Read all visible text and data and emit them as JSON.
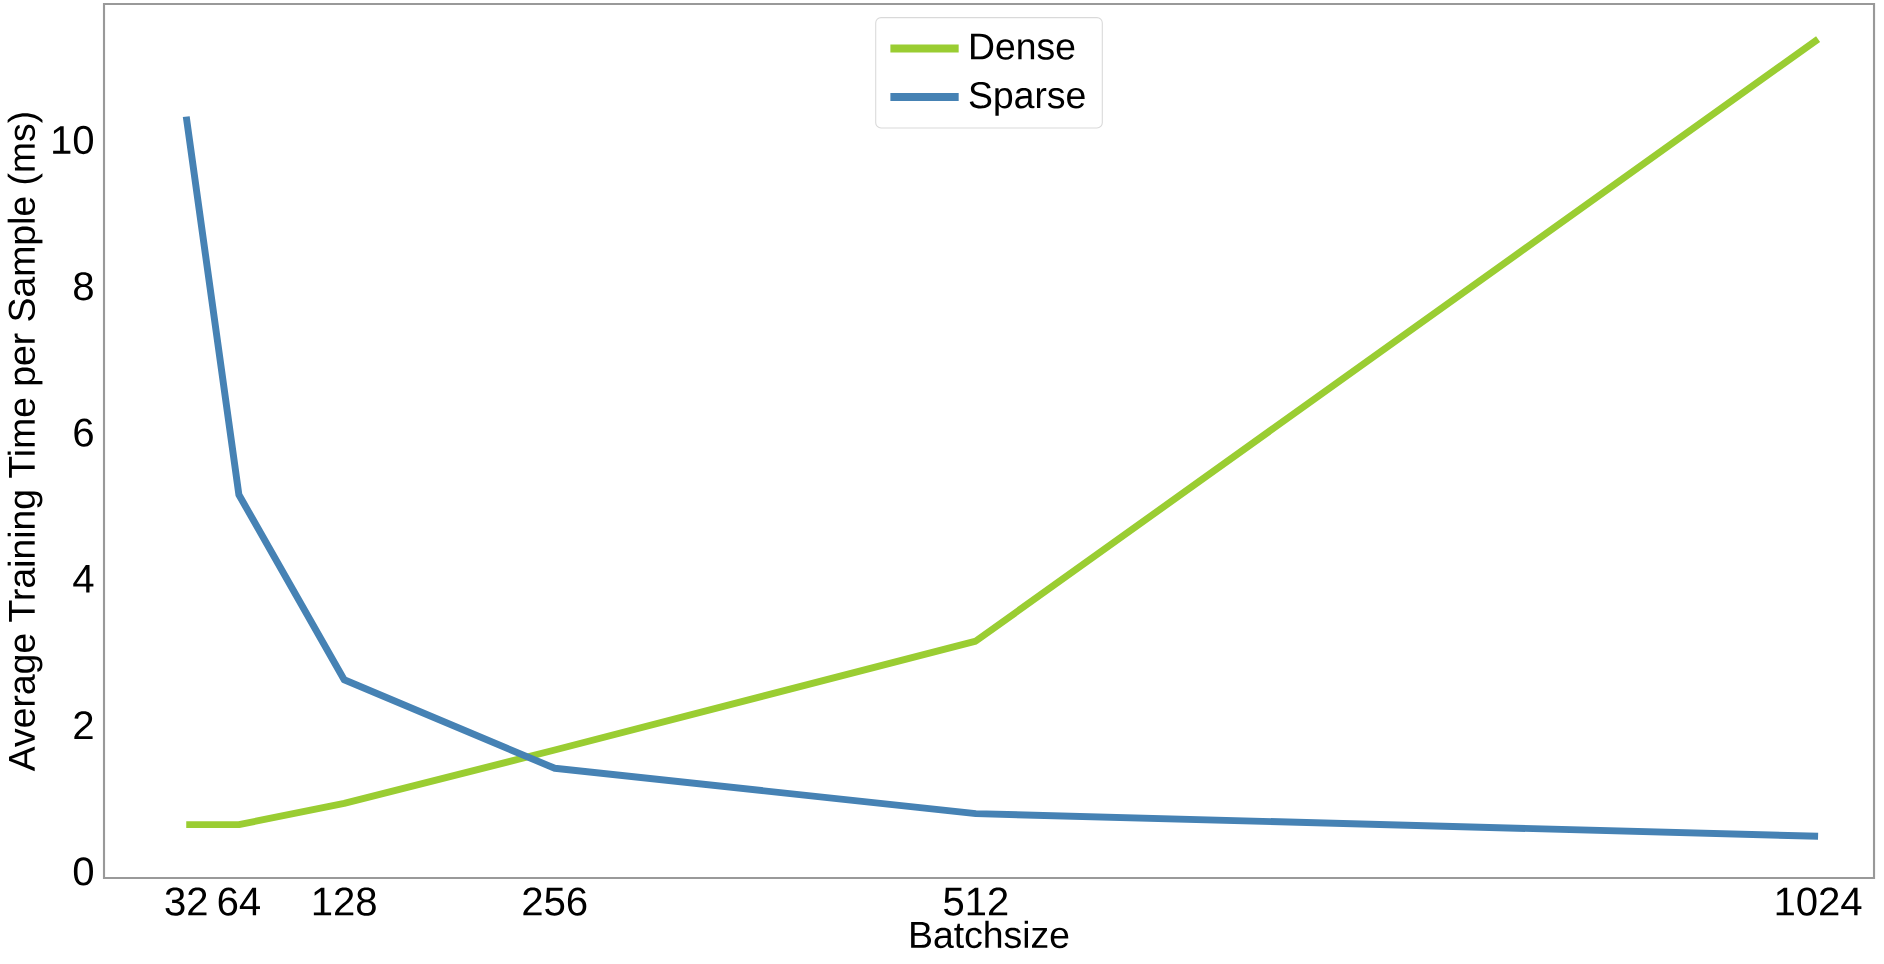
{
  "chart_data": {
    "type": "line",
    "xlabel": "Batchsize",
    "ylabel": "Average Training Time per Sample (ms)",
    "x": [
      32,
      64,
      128,
      256,
      512,
      1024
    ],
    "series": [
      {
        "name": "Dense",
        "color": "#9acd32",
        "values": [
          0.64,
          0.64,
          0.93,
          1.66,
          3.15,
          11.38
        ]
      },
      {
        "name": "Sparse",
        "color": "#4682b4",
        "values": [
          10.32,
          5.15,
          2.62,
          1.41,
          0.79,
          0.48
        ]
      }
    ],
    "xlim": [
      -18,
      1058
    ],
    "ylim": [
      -0.09,
      11.86
    ],
    "xticks": [
      32,
      64,
      128,
      256,
      512,
      1024
    ],
    "yticks": [
      0,
      2,
      4,
      6,
      8,
      10
    ],
    "legend": "top",
    "grid": false,
    "marker": "none",
    "line_style": "solid"
  }
}
